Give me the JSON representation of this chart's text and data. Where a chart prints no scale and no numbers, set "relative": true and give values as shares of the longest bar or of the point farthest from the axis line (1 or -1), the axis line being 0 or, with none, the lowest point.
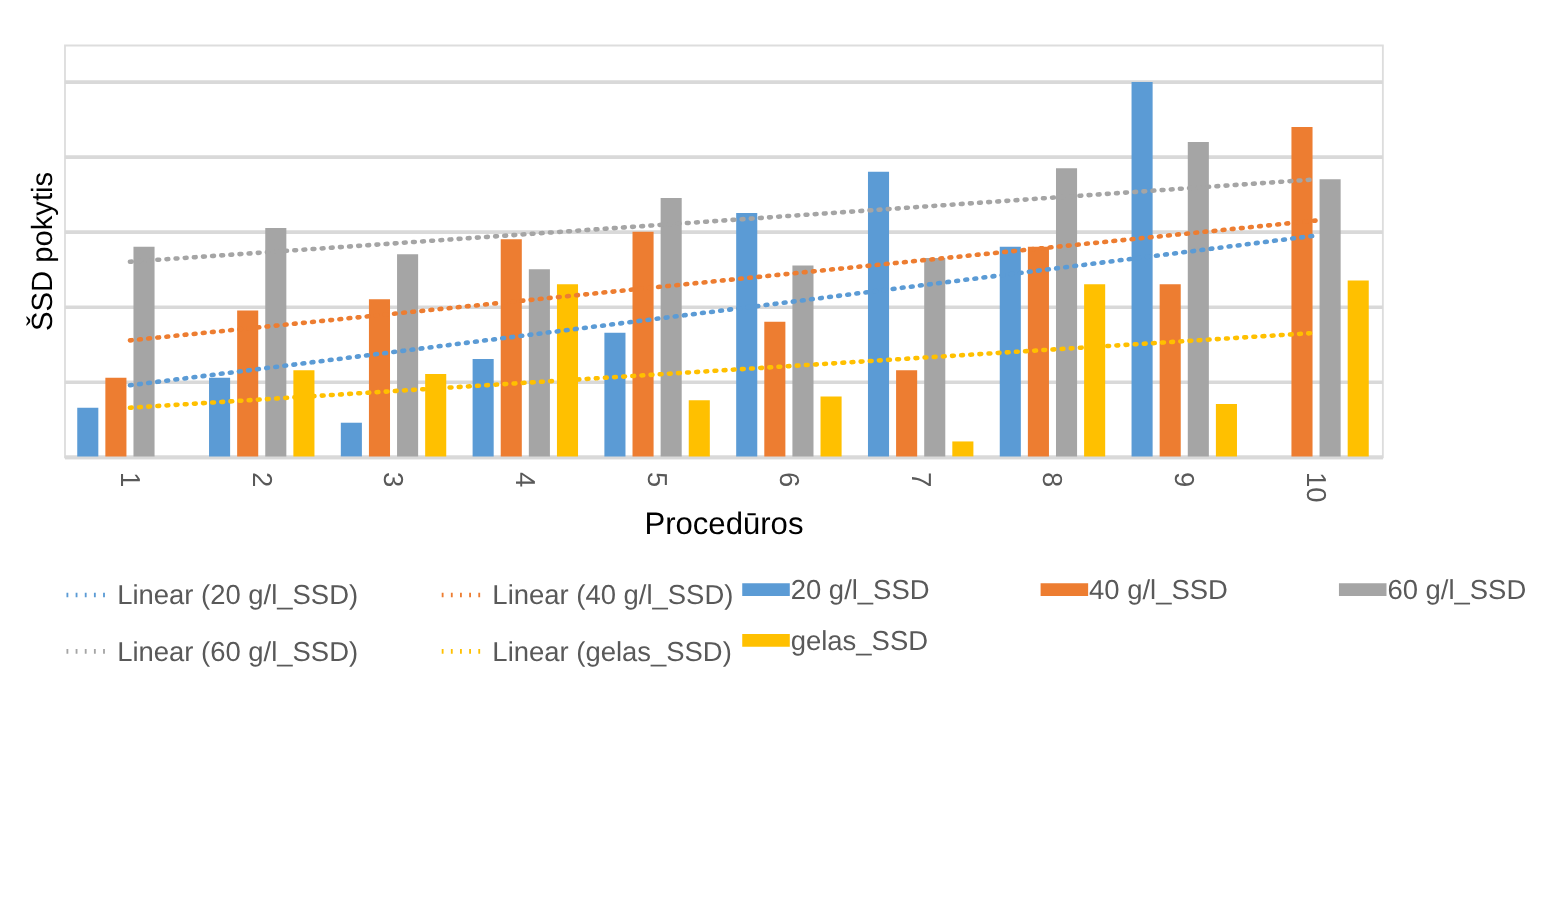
{
  "chart_data": {
    "type": "bar",
    "relative": true,
    "xlabel": "Procedūros",
    "ylabel": "ŠSD pokytis",
    "categories": [
      "1",
      "2",
      "3",
      "4",
      "5",
      "6",
      "7",
      "8",
      "9",
      "10"
    ],
    "series": [
      {
        "name": "20 g/l_SSD",
        "color": "#5b9bd5",
        "values": [
          0.13,
          0.21,
          0.09,
          0.26,
          0.33,
          0.65,
          0.76,
          0.56,
          1.0,
          null
        ]
      },
      {
        "name": "40 g/l_SSD",
        "color": "#ed7d31",
        "values": [
          0.21,
          0.39,
          0.42,
          0.58,
          0.6,
          0.36,
          0.23,
          0.56,
          0.46,
          0.88
        ]
      },
      {
        "name": "60 g/l_SSD",
        "color": "#a5a5a5",
        "values": [
          0.56,
          0.61,
          0.54,
          0.5,
          0.69,
          0.51,
          0.53,
          0.77,
          0.84,
          0.74
        ]
      },
      {
        "name": "gelas_SSD",
        "color": "#ffc000",
        "values": [
          null,
          0.23,
          0.22,
          0.46,
          0.15,
          0.16,
          0.04,
          0.46,
          0.14,
          0.47
        ]
      },
      {
        "name": "Linear (20 g/l_SSD)",
        "type": "line",
        "line_style": "dotted",
        "color": "#5b9bd5",
        "x": [
          "1",
          "10"
        ],
        "values": [
          0.19,
          0.59
        ]
      },
      {
        "name": "Linear (40 g/l_SSD)",
        "type": "line",
        "line_style": "dotted",
        "color": "#ed7d31",
        "x": [
          "1",
          "10"
        ],
        "values": [
          0.31,
          0.63
        ]
      },
      {
        "name": "Linear (60 g/l_SSD)",
        "type": "line",
        "line_style": "dotted",
        "color": "#a5a5a5",
        "x": [
          "1",
          "10"
        ],
        "values": [
          0.52,
          0.74
        ]
      },
      {
        "name": "Linear (gelas_SSD)",
        "type": "line",
        "line_style": "dotted",
        "color": "#ffc000",
        "x": [
          "1",
          "10"
        ],
        "values": [
          0.13,
          0.33
        ]
      }
    ],
    "grid": "y",
    "legend": "bottom"
  }
}
